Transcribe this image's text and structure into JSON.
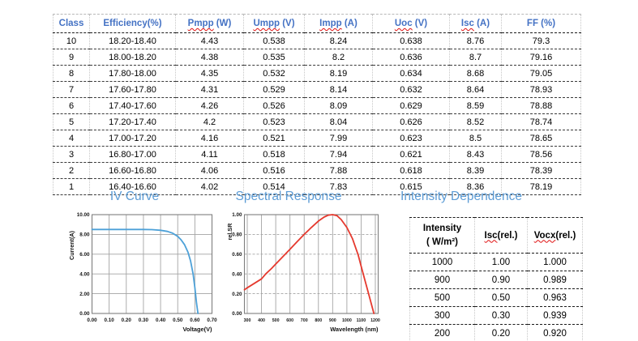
{
  "colors": {
    "header_blue": "#4472c4",
    "title_blue": "#5b9bd5",
    "iv_line": "#4da1d8",
    "sr_line": "#e5392e",
    "squiggle_red": "#e01010",
    "grid_gray": "#a3a3a3",
    "plot_border": "#7f7f7f"
  },
  "main_table": {
    "headers": [
      {
        "label": "Class",
        "squiggle": ""
      },
      {
        "label": "Efficiency(%)",
        "squiggle": ""
      },
      {
        "label": "Pmpp (W)",
        "squiggle": "Pmpp"
      },
      {
        "label": "Umpp (V)",
        "squiggle": "Umpp"
      },
      {
        "label": "Impp (A)",
        "squiggle": "Impp"
      },
      {
        "label": "Uoc (V)",
        "squiggle": "Uoc"
      },
      {
        "label": "Isc (A)",
        "squiggle": "Isc"
      },
      {
        "label": "FF (%)",
        "squiggle": ""
      }
    ],
    "rows": [
      [
        "10",
        "18.20-18.40",
        "4.43",
        "0.538",
        "8.24",
        "0.638",
        "8.76",
        "79.3"
      ],
      [
        "9",
        "18.00-18.20",
        "4.38",
        "0.535",
        "8.2",
        "0.636",
        "8.7",
        "79.16"
      ],
      [
        "8",
        "17.80-18.00",
        "4.35",
        "0.532",
        "8.19",
        "0.634",
        "8.68",
        "79.05"
      ],
      [
        "7",
        "17.60-17.80",
        "4.31",
        "0.529",
        "8.14",
        "0.632",
        "8.64",
        "78.93"
      ],
      [
        "6",
        "17.40-17.60",
        "4.26",
        "0.526",
        "8.09",
        "0.629",
        "8.59",
        "78.88"
      ],
      [
        "5",
        "17.20-17.40",
        "4.2",
        "0.523",
        "8.04",
        "0.626",
        "8.52",
        "78.74"
      ],
      [
        "4",
        "17.00-17.20",
        "4.16",
        "0.521",
        "7.99",
        "0.623",
        "8.5",
        "78.65"
      ],
      [
        "3",
        "16.80-17.00",
        "4.11",
        "0.518",
        "7.94",
        "0.621",
        "8.43",
        "78.56"
      ],
      [
        "2",
        "16.60-16.80",
        "4.06",
        "0.516",
        "7.88",
        "0.618",
        "8.39",
        "78.39"
      ],
      [
        "1",
        "16.40-16.60",
        "4.02",
        "0.514",
        "7.83",
        "0.615",
        "8.36",
        "78.19"
      ]
    ]
  },
  "sections": {
    "iv_curve_title": "IV Curve",
    "spectral_title": "Spectral Response",
    "intensity_title": "Intensity Dependence"
  },
  "chart_data": [
    {
      "name": "iv_curve",
      "type": "line",
      "title": "IV Curve",
      "xlabel": "Voltage(V)",
      "ylabel": "Current(A)",
      "xlim": [
        0,
        0.7
      ],
      "ylim": [
        0,
        10
      ],
      "xtick_vals": [
        0,
        0.1,
        0.2,
        0.3,
        0.4,
        0.5,
        0.6,
        0.7
      ],
      "xtick_labels": [
        "0.00",
        "0.10",
        "0.20",
        "0.30",
        "0.40",
        "0.50",
        "0.60",
        "0.70"
      ],
      "ytick_vals": [
        0,
        2,
        4,
        6,
        8,
        10
      ],
      "ytick_labels": [
        "0.00",
        "2.00",
        "4.00",
        "6.00",
        "8.00",
        "10.00"
      ],
      "grid_h": "solid",
      "grid_v": "solid",
      "line_color": "#4da1d8",
      "points": [
        [
          0,
          8.5
        ],
        [
          0.1,
          8.5
        ],
        [
          0.2,
          8.5
        ],
        [
          0.3,
          8.5
        ],
        [
          0.35,
          8.48
        ],
        [
          0.4,
          8.42
        ],
        [
          0.44,
          8.3
        ],
        [
          0.47,
          8.12
        ],
        [
          0.5,
          7.8
        ],
        [
          0.52,
          7.45
        ],
        [
          0.54,
          6.95
        ],
        [
          0.56,
          6.2
        ],
        [
          0.575,
          5.3
        ],
        [
          0.59,
          4.0
        ],
        [
          0.6,
          2.6
        ],
        [
          0.61,
          1.0
        ],
        [
          0.618,
          0
        ]
      ]
    },
    {
      "name": "spectral_response",
      "type": "line",
      "title": "Spectral Response",
      "xlabel": "Wavelength (nm)",
      "ylabel": "rel.SR",
      "xlim": [
        280,
        1220
      ],
      "ylim": [
        0,
        1
      ],
      "xtick_vals": [
        300,
        400,
        500,
        600,
        700,
        800,
        900,
        1000,
        1100,
        1200
      ],
      "xtick_labels": [
        "300",
        "400",
        "500",
        "600",
        "700",
        "800",
        "900",
        "1000",
        "1100",
        "1200"
      ],
      "ytick_vals": [
        0,
        0.2,
        0.4,
        0.6,
        0.8,
        1.0
      ],
      "ytick_labels": [
        "0.00",
        "0.20",
        "0.40",
        "0.60",
        "0.80",
        "1.00"
      ],
      "grid_h": "dashed",
      "grid_v": "solid",
      "line_color": "#e5392e",
      "points": [
        [
          280,
          0.24
        ],
        [
          300,
          0.26
        ],
        [
          350,
          0.305
        ],
        [
          400,
          0.35
        ],
        [
          430,
          0.4
        ],
        [
          470,
          0.455
        ],
        [
          500,
          0.5
        ],
        [
          550,
          0.575
        ],
        [
          600,
          0.65
        ],
        [
          650,
          0.725
        ],
        [
          700,
          0.8
        ],
        [
          750,
          0.87
        ],
        [
          800,
          0.935
        ],
        [
          840,
          0.975
        ],
        [
          870,
          0.995
        ],
        [
          900,
          1.0
        ],
        [
          930,
          0.99
        ],
        [
          960,
          0.95
        ],
        [
          1000,
          0.87
        ],
        [
          1040,
          0.755
        ],
        [
          1080,
          0.59
        ],
        [
          1100,
          0.48
        ],
        [
          1130,
          0.32
        ],
        [
          1160,
          0.16
        ],
        [
          1190,
          0.0
        ]
      ]
    }
  ],
  "intensity_table": {
    "headers": [
      {
        "lines": [
          "Intensity",
          "( W/m²)"
        ],
        "squiggle": ""
      },
      {
        "lines": [
          "Isc(rel.)"
        ],
        "squiggle": "Isc"
      },
      {
        "lines": [
          "Vocx(rel.)"
        ],
        "squiggle": "Vocx"
      }
    ],
    "rows": [
      [
        "1000",
        "1.00",
        "1.000"
      ],
      [
        "900",
        "0.90",
        "0.989"
      ],
      [
        "500",
        "0.50",
        "0.963"
      ],
      [
        "300",
        "0.30",
        "0.939"
      ],
      [
        "200",
        "0.20",
        "0.920"
      ]
    ]
  }
}
